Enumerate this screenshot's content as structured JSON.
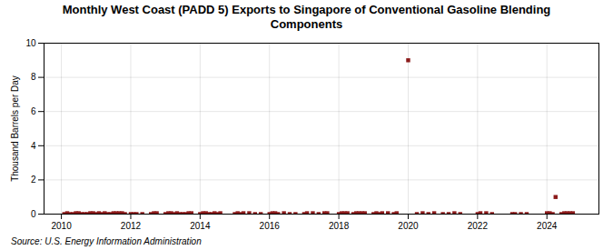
{
  "chart_data": {
    "type": "scatter",
    "title": "Monthly West Coast (PADD 5) Exports to Singapore of Conventional Gasoline Blending\nComponents",
    "ylabel": "Thousand Barrels per Day",
    "source": "Source: U.S. Energy Information Administration",
    "color": "#8b1a1a",
    "marker": "square",
    "grid": true,
    "xlim": [
      2009.5,
      2025.5
    ],
    "ylim": [
      0,
      10
    ],
    "xticks": [
      2010,
      2012,
      2014,
      2016,
      2018,
      2020,
      2022,
      2024
    ],
    "yticks": [
      0,
      2,
      4,
      6,
      8,
      10
    ],
    "x": [
      2010.083,
      2010.167,
      2010.25,
      2010.333,
      2010.417,
      2010.5,
      2010.583,
      2010.667,
      2010.75,
      2010.833,
      2010.917,
      2011.0,
      2011.083,
      2011.167,
      2011.25,
      2011.333,
      2011.417,
      2011.5,
      2011.583,
      2011.667,
      2011.75,
      2011.833,
      2012.0,
      2012.083,
      2012.167,
      2012.333,
      2012.583,
      2012.667,
      2012.75,
      2013.0,
      2013.083,
      2013.167,
      2013.25,
      2013.333,
      2013.417,
      2013.5,
      2013.583,
      2013.667,
      2013.75,
      2014.0,
      2014.083,
      2014.167,
      2014.25,
      2014.333,
      2014.417,
      2014.5,
      2014.583,
      2015.0,
      2015.083,
      2015.167,
      2015.25,
      2015.417,
      2015.583,
      2015.75,
      2016.0,
      2016.083,
      2016.167,
      2016.25,
      2016.417,
      2016.583,
      2016.75,
      2017.0,
      2017.083,
      2017.25,
      2017.417,
      2017.583,
      2017.667,
      2018.0,
      2018.083,
      2018.167,
      2018.25,
      2018.417,
      2018.5,
      2018.583,
      2018.667,
      2018.75,
      2019.0,
      2019.083,
      2019.167,
      2019.25,
      2019.417,
      2019.583,
      2019.667,
      2020.0,
      2020.25,
      2020.417,
      2020.583,
      2020.75,
      2021.0,
      2021.167,
      2021.333,
      2021.5,
      2022.0,
      2022.083,
      2022.25,
      2022.417,
      2023.0,
      2023.083,
      2023.25,
      2023.417,
      2024.0,
      2024.083,
      2024.167,
      2024.25,
      2024.417,
      2024.5,
      2024.583,
      2024.667,
      2024.75
    ],
    "values": [
      0.0,
      0.05,
      0.0,
      0.0,
      0.05,
      0.05,
      0.0,
      0.0,
      0.0,
      0.05,
      0.05,
      0.0,
      0.05,
      0.0,
      0.05,
      0.0,
      0.0,
      0.05,
      0.05,
      0.05,
      0.05,
      0.0,
      0.0,
      0.0,
      0.0,
      0.0,
      0.0,
      0.05,
      0.05,
      0.0,
      0.05,
      0.05,
      0.0,
      0.05,
      0.0,
      0.0,
      0.0,
      0.05,
      0.05,
      0.0,
      0.05,
      0.05,
      0.0,
      0.0,
      0.05,
      0.0,
      0.05,
      0.0,
      0.05,
      0.0,
      0.05,
      0.05,
      0.0,
      0.0,
      0.0,
      0.05,
      0.05,
      0.0,
      0.05,
      0.0,
      0.0,
      0.0,
      0.05,
      0.05,
      0.0,
      0.05,
      0.05,
      0.0,
      0.05,
      0.05,
      0.05,
      0.0,
      0.05,
      0.05,
      0.05,
      0.05,
      0.0,
      0.05,
      0.0,
      0.05,
      0.05,
      0.0,
      0.05,
      9.0,
      0.0,
      0.05,
      0.0,
      0.05,
      0.0,
      0.0,
      0.05,
      0.0,
      0.0,
      0.05,
      0.05,
      0.0,
      0.0,
      0.0,
      0.0,
      0.0,
      0.05,
      0.05,
      0.0,
      1.0,
      0.0,
      0.05,
      0.05,
      0.05,
      0.05
    ]
  }
}
